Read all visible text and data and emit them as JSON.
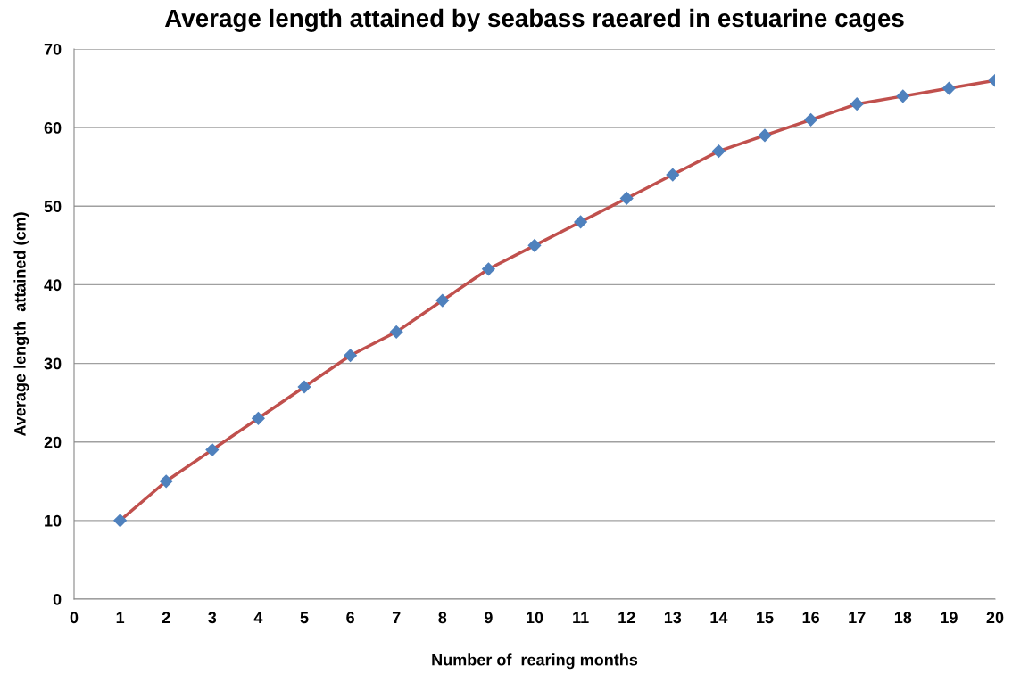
{
  "chart_data": {
    "type": "line",
    "title": "Average length attained by seabass raeared in estuarine cages",
    "xlabel": "Number of  rearing months",
    "ylabel": "Average length  attained (cm)",
    "x": [
      1,
      2,
      3,
      4,
      5,
      6,
      7,
      8,
      9,
      10,
      11,
      12,
      13,
      14,
      15,
      16,
      17,
      18,
      19,
      20
    ],
    "series": [
      {
        "color": "#c0504d",
        "colors": [
          "#4f81bd",
          "#4f81bd",
          "#4f81bd",
          "#4f81bd",
          "#4f81bd",
          "#4f81bd",
          "#4f81bd",
          "#4f81bd",
          "#4f81bd",
          "#4f81bd",
          "#4f81bd",
          "#4f81bd",
          "#4f81bd",
          "#4f81bd",
          "#4f81bd",
          "#4f81bd",
          "#4f81bd",
          "#4f81bd",
          "#4f81bd",
          "#4f81bd"
        ],
        "values": [
          10,
          15,
          19,
          23,
          27,
          31,
          34,
          38,
          42,
          45,
          48,
          51,
          54,
          57,
          59,
          61,
          63,
          64,
          65,
          66
        ]
      }
    ],
    "xlim": [
      0,
      20
    ],
    "xticks": [
      0,
      1,
      2,
      3,
      4,
      5,
      6,
      7,
      8,
      9,
      10,
      11,
      12,
      13,
      14,
      15,
      16,
      17,
      18,
      19,
      20
    ],
    "ylim": [
      0,
      70
    ],
    "yticks": [
      0,
      10,
      20,
      30,
      40,
      50,
      60,
      70
    ],
    "grid": "y",
    "marker": "diamond",
    "line_style": "solid",
    "legend": false
  }
}
